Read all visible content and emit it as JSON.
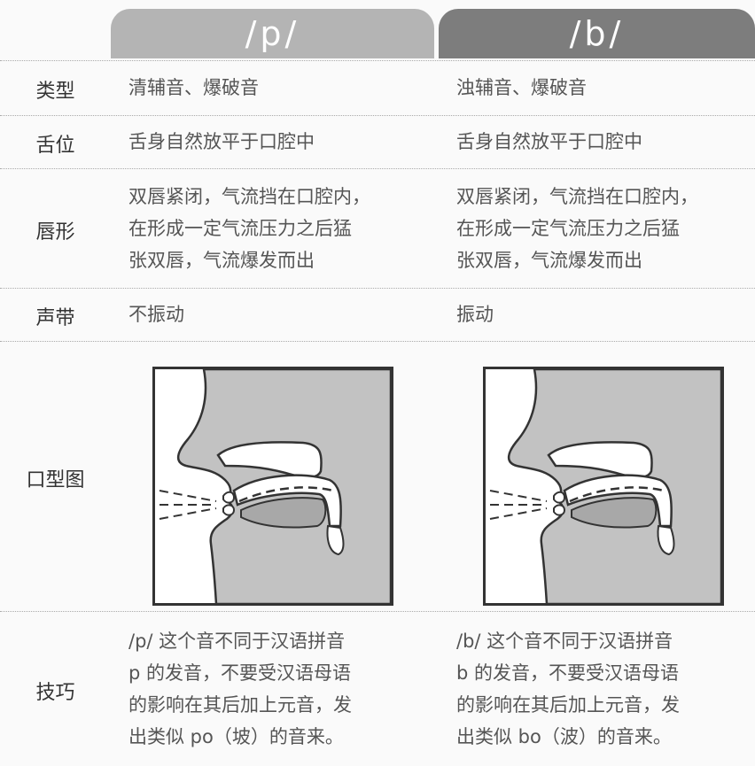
{
  "header": {
    "columns": [
      "/p/",
      "/b/"
    ]
  },
  "rows": [
    {
      "label": "类型",
      "cells": [
        [
          "清辅音、爆破音"
        ],
        [
          "浊辅音、爆破音"
        ]
      ]
    },
    {
      "label": "舌位",
      "cells": [
        [
          "舌身自然放平于口腔中"
        ],
        [
          "舌身自然放平于口腔中"
        ]
      ]
    },
    {
      "label": "唇形",
      "cells": [
        [
          "双唇紧闭，气流挡在口腔内，",
          "在形成一定气流压力之后猛",
          "张双唇，气流爆发而出"
        ],
        [
          "双唇紧闭，气流挡在口腔内，",
          "在形成一定气流压力之后猛",
          "张双唇，气流爆发而出"
        ]
      ]
    },
    {
      "label": "声带",
      "cells": [
        [
          "不振动"
        ],
        [
          "振动"
        ]
      ]
    },
    {
      "label": "口型图"
    },
    {
      "label": "技巧",
      "cells": [
        [
          "/p/ 这个音不同于汉语拼音",
          "p 的发音，不要受汉语母语",
          "的影响在其后加上元音，发",
          "出类似 po（坡）的音来。"
        ],
        [
          "/b/ 这个音不同于汉语拼音",
          "b 的发音，不要受汉语母语",
          "的影响在其后加上元音，发",
          "出类似 bo（波）的音来。"
        ]
      ]
    }
  ]
}
